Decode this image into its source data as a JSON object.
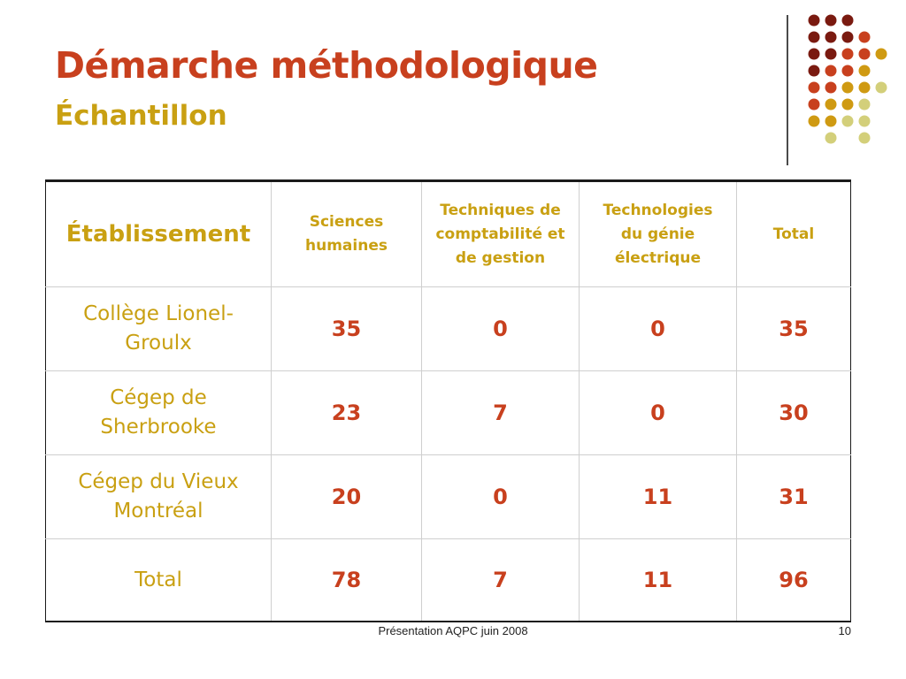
{
  "slide": {
    "title": "Démarche méthodologique",
    "subtitle": "Échantillon",
    "footer_center": "Présentation AQPC juin 2008",
    "footer_page": "10"
  },
  "colors": {
    "title": "#c8401e",
    "subtitle": "#c9a012",
    "numbers": "#c8401e",
    "dot_palette": [
      "#7a1a10",
      "#c8401e",
      "#cf9a12",
      "#d3cf7a"
    ]
  },
  "table": {
    "corner_header": "Établissement",
    "columns": [
      "Sciences humaines",
      "Techniques de comptabilité et de gestion",
      "Technologies du génie électrique",
      "Total"
    ],
    "rows": [
      {
        "name": "Collège Lionel-Groulx",
        "values": [
          "35",
          "0",
          "0",
          "35"
        ]
      },
      {
        "name": "Cégep de Sherbrooke",
        "values": [
          "23",
          "7",
          "0",
          "30"
        ]
      },
      {
        "name": "Cégep du Vieux Montréal",
        "values": [
          "20",
          "0",
          "11",
          "31"
        ]
      },
      {
        "name": "Total",
        "values": [
          "78",
          "7",
          "11",
          "96"
        ]
      }
    ]
  }
}
